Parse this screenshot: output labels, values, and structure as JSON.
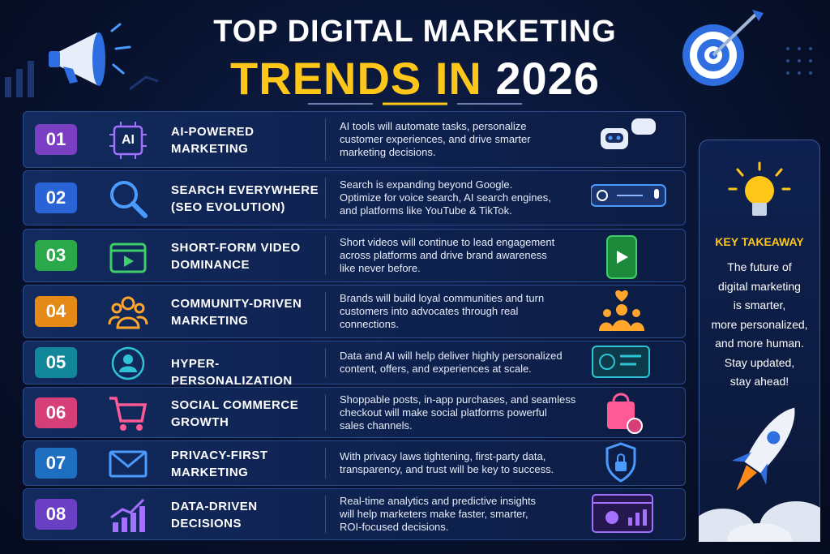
{
  "header": {
    "title_line1": "TOP DIGITAL MARKETING",
    "title_line2_highlight": "TRENDS IN",
    "title_line2_rest": "2026"
  },
  "trends": [
    {
      "number": "01",
      "icon_text": "AI",
      "title": [
        "AI-POWERED",
        "MARKETING"
      ],
      "description": [
        "AI tools will automate tasks, personalize",
        "customer experiences, and drive smarter",
        "marketing decisions."
      ]
    },
    {
      "number": "02",
      "title": [
        "SEARCH EVERYWHERE",
        "(SEO EVOLUTION)"
      ],
      "description": [
        "Search is expanding beyond Google.",
        "Optimize for voice search, AI search engines,",
        "and platforms like YouTube & TikTok."
      ]
    },
    {
      "number": "03",
      "title": [
        "SHORT-FORM VIDEO",
        "DOMINANCE"
      ],
      "description": [
        "Short videos will continue to lead engagement",
        "across platforms and drive brand awareness",
        "like never before."
      ]
    },
    {
      "number": "04",
      "title": [
        "COMMUNITY-DRIVEN",
        "MARKETING"
      ],
      "description": [
        "Brands will build loyal communities and turn",
        "customers into advocates through real",
        "connections."
      ]
    },
    {
      "number": "05",
      "title": [
        "HYPER-PERSONALIZATION"
      ],
      "description": [
        "Data and AI will help deliver highly personalized",
        "content, offers, and experiences at scale."
      ]
    },
    {
      "number": "06",
      "title": [
        "SOCIAL COMMERCE",
        "GROWTH"
      ],
      "description": [
        "Shoppable posts, in-app purchases, and seamless",
        "checkout will make social platforms powerful",
        "sales channels."
      ]
    },
    {
      "number": "07",
      "title": [
        "PRIVACY-FIRST",
        "MARKETING"
      ],
      "description": [
        "With privacy laws tightening, first-party data,",
        "transparency, and trust will be key to success."
      ]
    },
    {
      "number": "08",
      "title": [
        "DATA-DRIVEN",
        "DECISIONS"
      ],
      "description": [
        "Real-time analytics and predictive insights",
        "will help marketers make faster, smarter,",
        "ROI-focused decisions."
      ]
    }
  ],
  "takeaway": {
    "heading": "KEY TAKEAWAY",
    "lines": [
      "The future of",
      "digital marketing",
      "is smarter,",
      "more personalized,",
      "and more human.",
      "Stay updated,",
      "stay ahead!"
    ]
  }
}
